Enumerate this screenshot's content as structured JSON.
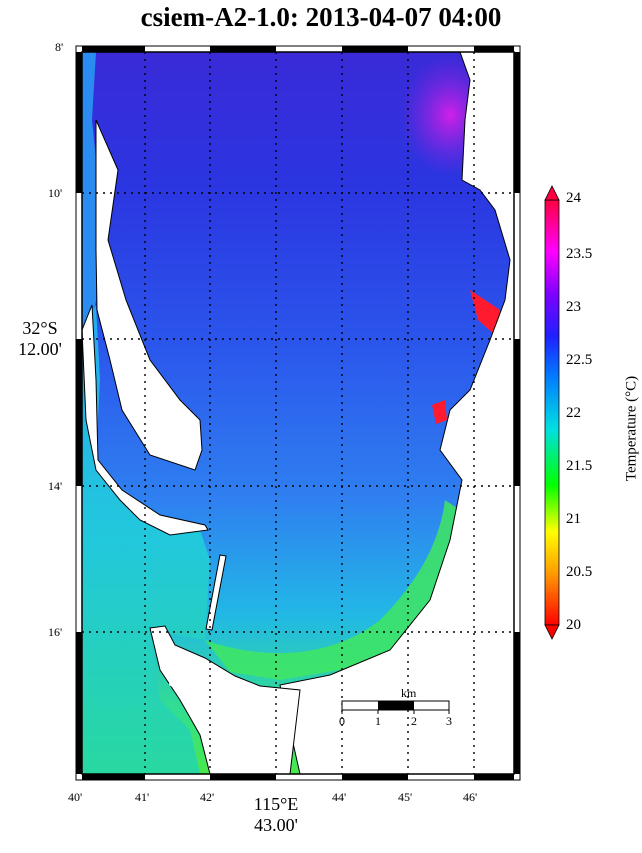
{
  "title": "csiem-A2-1.0: 2013-04-07 04:00",
  "map": {
    "lat_ticks": [
      "8'",
      "10'",
      "32°S\n12.00'",
      "14'",
      "16'"
    ],
    "lon_ticks": [
      "40'",
      "41'",
      "42'",
      "115°E\n43.00'",
      "44'",
      "45'",
      "46'"
    ],
    "lat_center_label": "32°S",
    "lat_center_value": "12.00'",
    "lon_center_label": "115°E",
    "lon_center_value": "43.00'",
    "lat_minor": [
      "8'",
      "10'",
      "14'",
      "16'"
    ],
    "lon_minor": [
      "40'",
      "41'",
      "42'",
      "44'",
      "45'",
      "46'"
    ],
    "land_color": "#ffffff",
    "frame_color": "#000000"
  },
  "scale_bar": {
    "unit": "km",
    "ticks": [
      "0",
      "1",
      "2",
      "3"
    ]
  },
  "colorbar": {
    "label": "Temperature (°C)",
    "min": 20,
    "max": 24,
    "ticks": [
      "20",
      "20.5",
      "21",
      "21.5",
      "22",
      "22.5",
      "23",
      "23.5",
      "24"
    ],
    "colormap": [
      "#ff0000",
      "#ff9900",
      "#ffff00",
      "#00ff00",
      "#00e5e5",
      "#0080ff",
      "#2020ff",
      "#8000ff",
      "#ff00ff",
      "#ff0060",
      "#ff0000"
    ]
  },
  "legend": {
    "colors": {
      "deep_blue": "#2a2ad8",
      "mid_blue": "#2f6ff0",
      "cyan": "#23c8e0",
      "green": "#3dea55",
      "magenta": "#c820e6",
      "red": "#ff1030"
    }
  }
}
